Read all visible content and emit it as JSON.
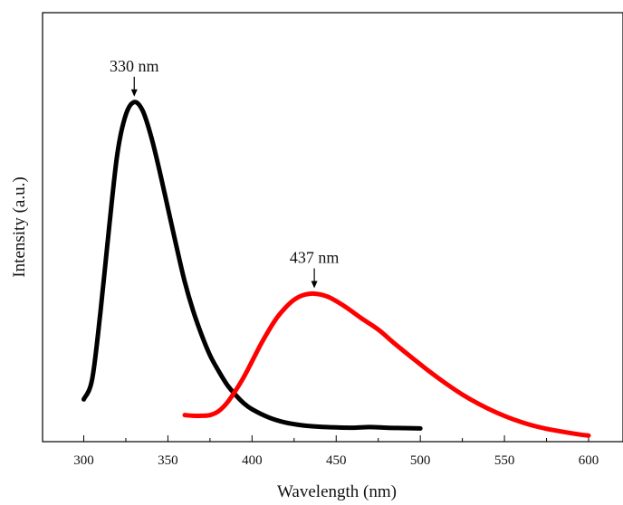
{
  "chart_data": {
    "type": "line",
    "title": "",
    "xlabel": "Wavelength (nm)",
    "ylabel": "Intensity (a.u.)",
    "xlim": [
      275,
      610
    ],
    "ylim": [
      0,
      1.1
    ],
    "xticks": [
      300,
      350,
      400,
      450,
      500,
      550,
      600
    ],
    "x_tick_labels": [
      "300",
      "350",
      "400",
      "450",
      "500",
      "550",
      "600"
    ],
    "y_ticks_shown": false,
    "grid": false,
    "legend": "none",
    "series": [
      {
        "color": "#000000",
        "points": [
          [
            300,
            0.121
          ],
          [
            305,
            0.18
          ],
          [
            310,
            0.38
          ],
          [
            315,
            0.62
          ],
          [
            320,
            0.84
          ],
          [
            325,
            0.953
          ],
          [
            330,
            0.99
          ],
          [
            335,
            0.965
          ],
          [
            340,
            0.89
          ],
          [
            345,
            0.79
          ],
          [
            350,
            0.68
          ],
          [
            355,
            0.57
          ],
          [
            360,
            0.465
          ],
          [
            365,
            0.38
          ],
          [
            370,
            0.31
          ],
          [
            375,
            0.25
          ],
          [
            380,
            0.205
          ],
          [
            385,
            0.165
          ],
          [
            390,
            0.135
          ],
          [
            395,
            0.11
          ],
          [
            400,
            0.092
          ],
          [
            410,
            0.068
          ],
          [
            420,
            0.053
          ],
          [
            430,
            0.045
          ],
          [
            440,
            0.041
          ],
          [
            450,
            0.039
          ],
          [
            460,
            0.038
          ],
          [
            470,
            0.04
          ],
          [
            480,
            0.038
          ],
          [
            490,
            0.037
          ],
          [
            500,
            0.036
          ]
        ]
      },
      {
        "color": "#ff0000",
        "points": [
          [
            360,
            0.075
          ],
          [
            365,
            0.073
          ],
          [
            370,
            0.073
          ],
          [
            375,
            0.075
          ],
          [
            380,
            0.086
          ],
          [
            385,
            0.11
          ],
          [
            390,
            0.145
          ],
          [
            395,
            0.185
          ],
          [
            400,
            0.232
          ],
          [
            405,
            0.28
          ],
          [
            410,
            0.323
          ],
          [
            415,
            0.361
          ],
          [
            420,
            0.39
          ],
          [
            425,
            0.412
          ],
          [
            430,
            0.425
          ],
          [
            437,
            0.43
          ],
          [
            445,
            0.421
          ],
          [
            455,
            0.393
          ],
          [
            465,
            0.358
          ],
          [
            475,
            0.325
          ],
          [
            485,
            0.283
          ],
          [
            495,
            0.243
          ],
          [
            505,
            0.204
          ],
          [
            515,
            0.168
          ],
          [
            525,
            0.135
          ],
          [
            535,
            0.107
          ],
          [
            545,
            0.083
          ],
          [
            555,
            0.063
          ],
          [
            565,
            0.047
          ],
          [
            575,
            0.035
          ],
          [
            585,
            0.026
          ],
          [
            595,
            0.018
          ],
          [
            600,
            0.015
          ]
        ]
      }
    ],
    "annotations": [
      {
        "text": "330 nm",
        "x": 330,
        "y": 0.99
      },
      {
        "text": "437 nm",
        "x": 437,
        "y": 0.43
      }
    ]
  }
}
